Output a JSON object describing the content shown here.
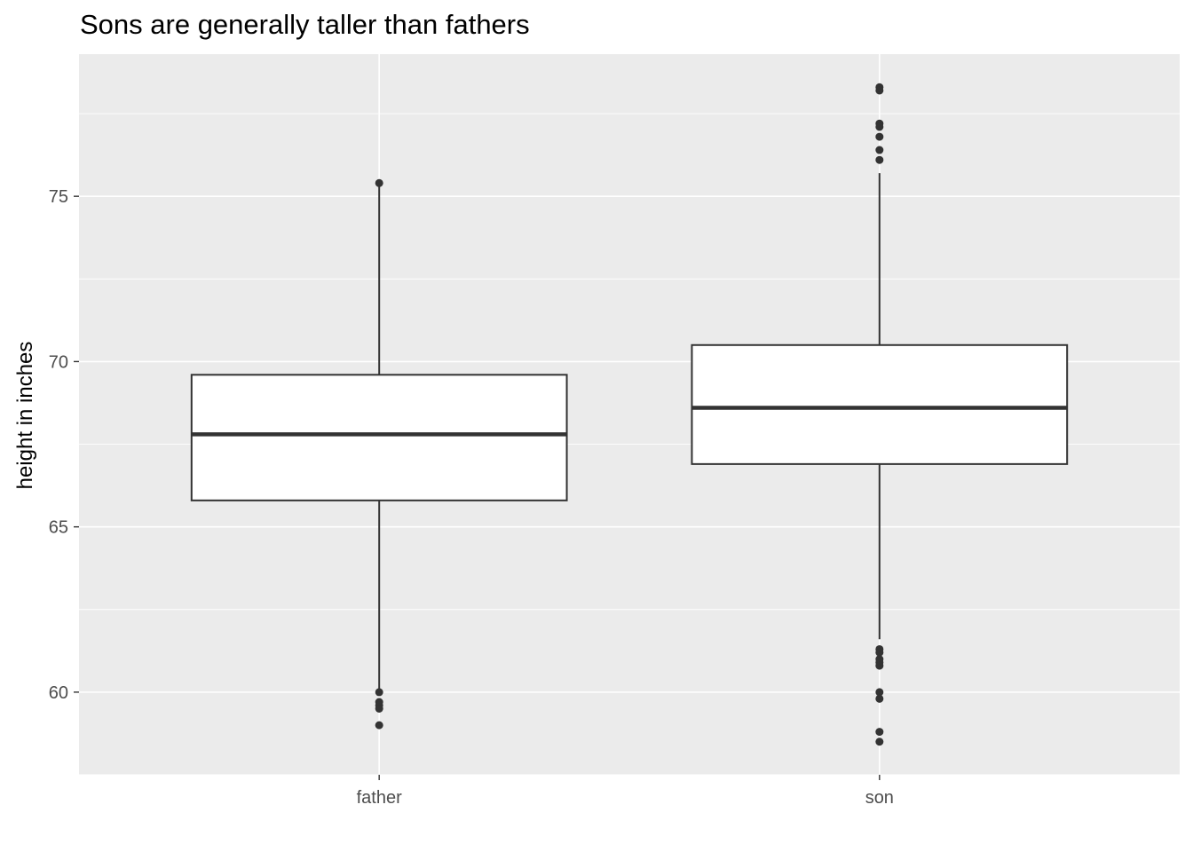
{
  "chart_data": {
    "type": "boxplot",
    "title": "Sons are generally taller than fathers",
    "xlabel": "",
    "ylabel": "height in inches",
    "categories": [
      "father",
      "son"
    ],
    "yticks": [
      60,
      65,
      70,
      75
    ],
    "ylim": [
      57.5,
      79.3
    ],
    "grid": true,
    "boxes": [
      {
        "category": "father",
        "lower_whisker": 60.1,
        "q1": 65.8,
        "median": 67.8,
        "q3": 69.6,
        "upper_whisker": 75.3,
        "outliers": [
          75.4,
          60.0,
          59.7,
          59.6,
          59.5,
          59.0
        ]
      },
      {
        "category": "son",
        "lower_whisker": 61.6,
        "q1": 66.9,
        "median": 68.6,
        "q3": 70.5,
        "upper_whisker": 75.7,
        "outliers": [
          78.3,
          78.2,
          77.2,
          77.1,
          76.8,
          76.4,
          76.1,
          61.3,
          61.2,
          61.0,
          60.9,
          60.8,
          60.0,
          59.8,
          58.8,
          58.5
        ]
      }
    ],
    "colors": {
      "panel_background": "#EBEBEB",
      "grid": "#FFFFFF",
      "box_fill": "#FFFFFF",
      "box_line": "#333333",
      "tick_text": "#4D4D4D"
    }
  }
}
